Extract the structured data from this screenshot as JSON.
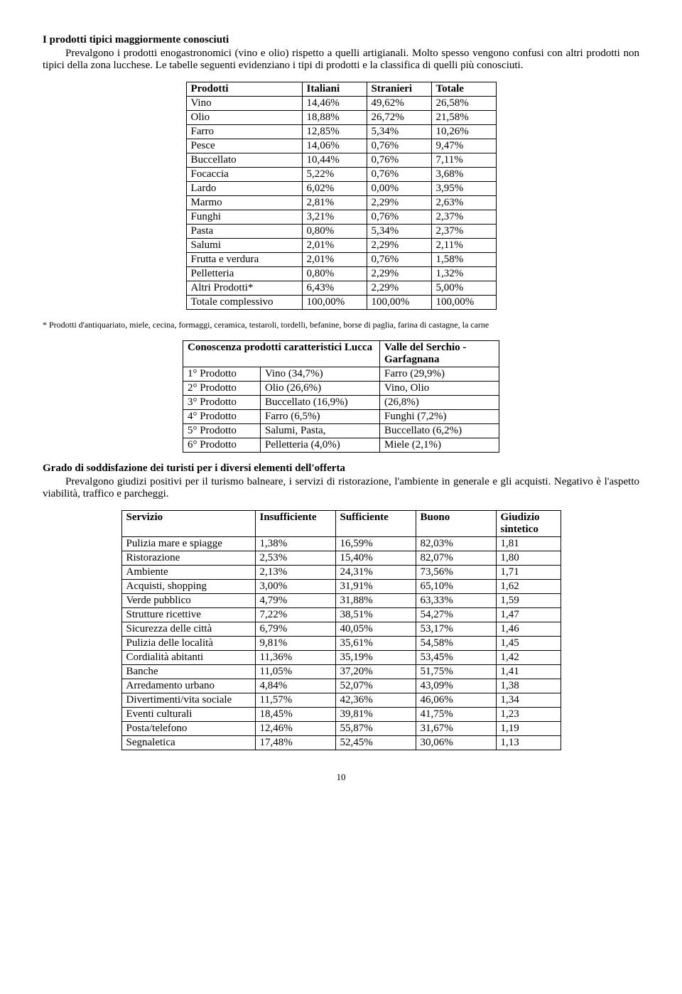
{
  "section1": {
    "heading": "I prodotti tipici maggiormente conosciuti",
    "para": "Prevalgono i prodotti enogastronomici  (vino e olio) rispetto a quelli artigianali. Molto spesso vengono confusi con altri prodotti non tipici della zona lucchese.  Le tabelle seguenti evidenziano i tipi di prodotti e la classifica di quelli più conosciuti."
  },
  "table1": {
    "header": [
      "Prodotti",
      "Italiani",
      "Stranieri",
      "Totale"
    ],
    "rows": [
      [
        "Vino",
        "14,46%",
        "49,62%",
        "26,58%"
      ],
      [
        "Olio",
        "18,88%",
        "26,72%",
        "21,58%"
      ],
      [
        "Farro",
        "12,85%",
        "5,34%",
        "10,26%"
      ],
      [
        "Pesce",
        "14,06%",
        "0,76%",
        "9,47%"
      ],
      [
        "Buccellato",
        "10,44%",
        "0,76%",
        "7,11%"
      ],
      [
        "Focaccia",
        "5,22%",
        "0,76%",
        "3,68%"
      ],
      [
        "Lardo",
        "6,02%",
        "0,00%",
        "3,95%"
      ],
      [
        "Marmo",
        "2,81%",
        "2,29%",
        "2,63%"
      ],
      [
        "Funghi",
        "3,21%",
        "0,76%",
        "2,37%"
      ],
      [
        "Pasta",
        "0,80%",
        "5,34%",
        "2,37%"
      ],
      [
        "Salumi",
        "2,01%",
        "2,29%",
        "2,11%"
      ],
      [
        "Frutta e verdura",
        "2,01%",
        "0,76%",
        "1,58%"
      ],
      [
        "Pelletteria",
        "0,80%",
        "2,29%",
        "1,32%"
      ],
      [
        "Altri Prodotti*",
        "6,43%",
        "2,29%",
        "5,00%"
      ],
      [
        "Totale complessivo",
        "100,00%",
        "100,00%",
        "100,00%"
      ]
    ]
  },
  "footnote": "* Prodotti d'antiquariato, miele, cecina, formaggi, ceramica, testaroli, tordelli, befanine, borse di paglia, farina di castagne, la carne",
  "table2": {
    "header": [
      "Conoscenza prodotti caratteristici Lucca",
      "Valle del Serchio - Garfagnana"
    ],
    "rows": [
      [
        "1° Prodotto",
        "Vino (34,7%)",
        "Farro (29,9%)"
      ],
      [
        "2° Prodotto",
        "Olio          (26,6%)",
        "Vino,            Olio"
      ],
      [
        "3° Prodotto",
        "Buccellato (16,9%)",
        "(26,8%)"
      ],
      [
        "4° Prodotto",
        "Farro (6,5%)",
        "Funghi (7,2%)"
      ],
      [
        "5° Prodotto",
        "Salumi, Pasta,",
        "Buccellato (6,2%)"
      ],
      [
        "6° Prodotto",
        "Pelletteria (4,0%)",
        "Miele (2,1%)"
      ]
    ]
  },
  "section2": {
    "heading": "Grado di soddisfazione dei turisti per i diversi elementi dell'offerta",
    "para": "Prevalgono giudizi positivi per il turismo balneare, i servizi di ristorazione, l'ambiente in generale e gli acquisti. Negativo è l'aspetto viabilità, traffico e  parcheggi."
  },
  "table3": {
    "header": [
      "Servizio",
      "Insufficiente",
      "Sufficiente",
      "Buono",
      "Giudizio sintetico"
    ],
    "rows": [
      [
        "Pulizia mare e spiagge",
        "1,38%",
        "16,59%",
        "82,03%",
        "1,81"
      ],
      [
        "Ristorazione",
        "2,53%",
        "15,40%",
        "82,07%",
        "1,80"
      ],
      [
        "Ambiente",
        "2,13%",
        "24,31%",
        "73,56%",
        "1,71"
      ],
      [
        "Acquisti, shopping",
        "3,00%",
        "31,91%",
        "65,10%",
        "1,62"
      ],
      [
        "Verde pubblico",
        "4,79%",
        "31,88%",
        "63,33%",
        "1,59"
      ],
      [
        "Strutture ricettive",
        "7,22%",
        "38,51%",
        "54,27%",
        "1,47"
      ],
      [
        "Sicurezza delle città",
        "6,79%",
        "40,05%",
        "53,17%",
        "1,46"
      ],
      [
        "Pulizia delle località",
        "9,81%",
        "35,61%",
        "54,58%",
        "1,45"
      ],
      [
        "Cordialità abitanti",
        "11,36%",
        "35,19%",
        "53,45%",
        "1,42"
      ],
      [
        "Banche",
        "11,05%",
        "37,20%",
        "51,75%",
        "1,41"
      ],
      [
        "Arredamento urbano",
        "4,84%",
        "52,07%",
        "43,09%",
        "1,38"
      ],
      [
        "Divertimenti/vita sociale",
        "11,57%",
        "42,36%",
        "46,06%",
        "1,34"
      ],
      [
        "Eventi culturali",
        "18,45%",
        "39,81%",
        "41,75%",
        "1,23"
      ],
      [
        "Posta/telefono",
        "12,46%",
        "55,87%",
        "31,67%",
        "1,19"
      ],
      [
        "Segnaletica",
        "17,48%",
        "52,45%",
        "30,06%",
        "1,13"
      ]
    ]
  },
  "pageNumber": "10"
}
